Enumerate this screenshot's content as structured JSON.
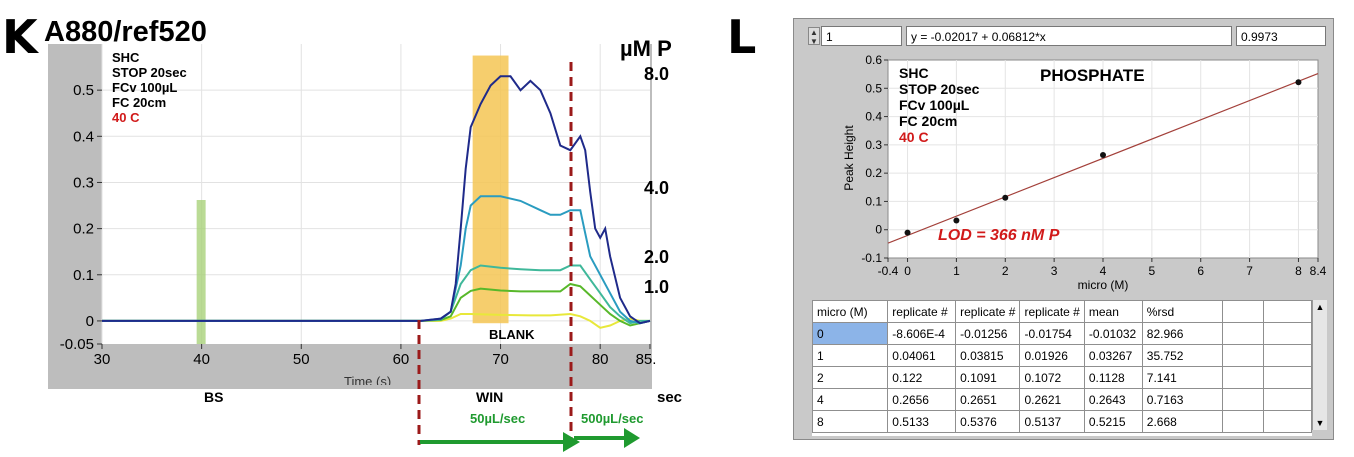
{
  "panel_k": {
    "letter": "K",
    "title": "A880/ref520",
    "params": [
      "SHC",
      "STOP 20sec",
      "FCv 100µL",
      "FC 20cm"
    ],
    "temp": "40 C",
    "conc_unit": "µM P",
    "conc_labels": [
      "8.0",
      "4.0",
      "2.0",
      "1.0"
    ],
    "blank_label": "BLANK",
    "x_axis_partial": "Time (s)",
    "bottom_labels": {
      "bs": "BS",
      "win": "WIN",
      "sec": "sec",
      "flow1": "50µL/sec",
      "flow2": "500µL/sec"
    },
    "colors": {
      "c8": "#1f2a8a",
      "c4": "#2a9cc0",
      "c2": "#3fb89a",
      "c1": "#58b82a",
      "blank": "#e8e83a",
      "win_band": "#f5c653",
      "bs_band": "#a9d27a",
      "dash": "#9b1a1a",
      "arrow": "#1f9a2f",
      "temp": "#d11a1a"
    }
  },
  "panel_l": {
    "letter": "L",
    "index_value": "1",
    "equation": "y = -0.02017 + 0.06812*x",
    "r_value": "0.9973",
    "params": [
      "SHC",
      "STOP 20sec",
      "FCv 100µL",
      "FC 20cm"
    ],
    "temp": "40 C",
    "plot_title": "PHOSPHATE",
    "lod": "LOD = 366 nM P",
    "table": {
      "headers": [
        "micro (M)",
        "replicate #",
        "replicate #",
        "replicate #",
        "mean",
        "%rsd"
      ],
      "rows": [
        [
          "0",
          "-8.606E-4",
          "-0.01256",
          "-0.01754",
          "-0.01032",
          "82.966"
        ],
        [
          "1",
          "0.04061",
          "0.03815",
          "0.01926",
          "0.03267",
          "35.752"
        ],
        [
          "2",
          "0.122",
          "0.1091",
          "0.1072",
          "0.1128",
          "7.141"
        ],
        [
          "4",
          "0.2656",
          "0.2651",
          "0.2621",
          "0.2643",
          "0.7163"
        ],
        [
          "8",
          "0.5133",
          "0.5376",
          "0.5137",
          "0.5215",
          "2.668"
        ]
      ]
    }
  },
  "chart_data": [
    {
      "type": "line",
      "title": "A880/ref520",
      "xlabel": "Time (s)",
      "ylabel": "",
      "xlim": [
        30,
        85
      ],
      "ylim": [
        -0.05,
        0.6
      ],
      "x_ticks": [
        "30",
        "40",
        "50",
        "60",
        "70",
        "80",
        "85."
      ],
      "y_ticks": [
        "-0.05",
        "0",
        "0.1",
        "0.2",
        "0.3",
        "0.4",
        "0.5"
      ],
      "series": [
        {
          "name": "8.0",
          "x": [
            30,
            62,
            64,
            65,
            65.5,
            66,
            66.5,
            67,
            68,
            69,
            70,
            71,
            72,
            73,
            74,
            75,
            76,
            77,
            78,
            78.5,
            79,
            79.5,
            80,
            80.5,
            81,
            82,
            83,
            84,
            85
          ],
          "y": [
            0,
            0,
            0.005,
            0.02,
            0.08,
            0.2,
            0.33,
            0.42,
            0.47,
            0.51,
            0.53,
            0.53,
            0.5,
            0.52,
            0.5,
            0.45,
            0.38,
            0.37,
            0.4,
            0.37,
            0.28,
            0.2,
            0.18,
            0.2,
            0.14,
            0.05,
            0.01,
            -0.005,
            0
          ]
        },
        {
          "name": "4.0",
          "x": [
            30,
            62,
            64,
            65,
            66,
            66.5,
            67,
            68,
            70,
            72,
            73,
            74,
            75,
            76,
            77,
            78,
            78.5,
            79,
            80,
            81,
            82,
            83,
            84,
            85
          ],
          "y": [
            0,
            0,
            0.005,
            0.02,
            0.12,
            0.2,
            0.25,
            0.27,
            0.27,
            0.26,
            0.25,
            0.24,
            0.23,
            0.23,
            0.24,
            0.24,
            0.19,
            0.14,
            0.1,
            0.06,
            0.02,
            0,
            -0.005,
            0
          ]
        },
        {
          "name": "2.0",
          "x": [
            30,
            62,
            64,
            65,
            66,
            67,
            68,
            70,
            72,
            74,
            76,
            77,
            78,
            79,
            80,
            81,
            82,
            83,
            84,
            85
          ],
          "y": [
            0,
            0,
            0.003,
            0.02,
            0.08,
            0.11,
            0.12,
            0.115,
            0.112,
            0.11,
            0.11,
            0.12,
            0.12,
            0.09,
            0.06,
            0.03,
            0.01,
            -0.005,
            0,
            0
          ]
        },
        {
          "name": "1.0",
          "x": [
            30,
            62,
            64,
            65,
            66,
            67,
            68,
            70,
            72,
            74,
            76,
            77,
            78,
            79,
            80,
            81,
            82,
            83,
            84,
            85
          ],
          "y": [
            0,
            0,
            0.002,
            0.01,
            0.05,
            0.065,
            0.07,
            0.066,
            0.064,
            0.064,
            0.064,
            0.08,
            0.075,
            0.055,
            0.035,
            0.015,
            0,
            -0.01,
            -0.005,
            0
          ]
        },
        {
          "name": "BLANK",
          "x": [
            30,
            62,
            64,
            65,
            66,
            67,
            70,
            73,
            75,
            77,
            78,
            79,
            80,
            81,
            82,
            83,
            84,
            85
          ],
          "y": [
            0,
            0,
            0,
            0.005,
            0.015,
            0.015,
            0.013,
            0.012,
            0.012,
            0.015,
            0.01,
            0,
            -0.015,
            -0.01,
            0,
            0.005,
            0,
            0
          ]
        }
      ]
    },
    {
      "type": "scatter",
      "title": "PHOSPHATE",
      "xlabel": "micro (M)",
      "ylabel": "Peak Height",
      "xlim": [
        -0.4,
        8.4
      ],
      "ylim": [
        -0.1,
        0.6
      ],
      "x_ticks": [
        "-0.4",
        "0",
        "1",
        "2",
        "3",
        "4",
        "5",
        "6",
        "7",
        "8",
        "8.4"
      ],
      "y_ticks": [
        "-0.1",
        "0",
        "0.1",
        "0.2",
        "0.3",
        "0.4",
        "0.5",
        "0.6"
      ],
      "points": {
        "x": [
          0,
          1,
          2,
          4,
          8
        ],
        "y": [
          -0.01032,
          0.03267,
          0.1128,
          0.2643,
          0.5215
        ]
      },
      "fit": {
        "intercept": -0.02017,
        "slope": 0.06812
      }
    }
  ]
}
